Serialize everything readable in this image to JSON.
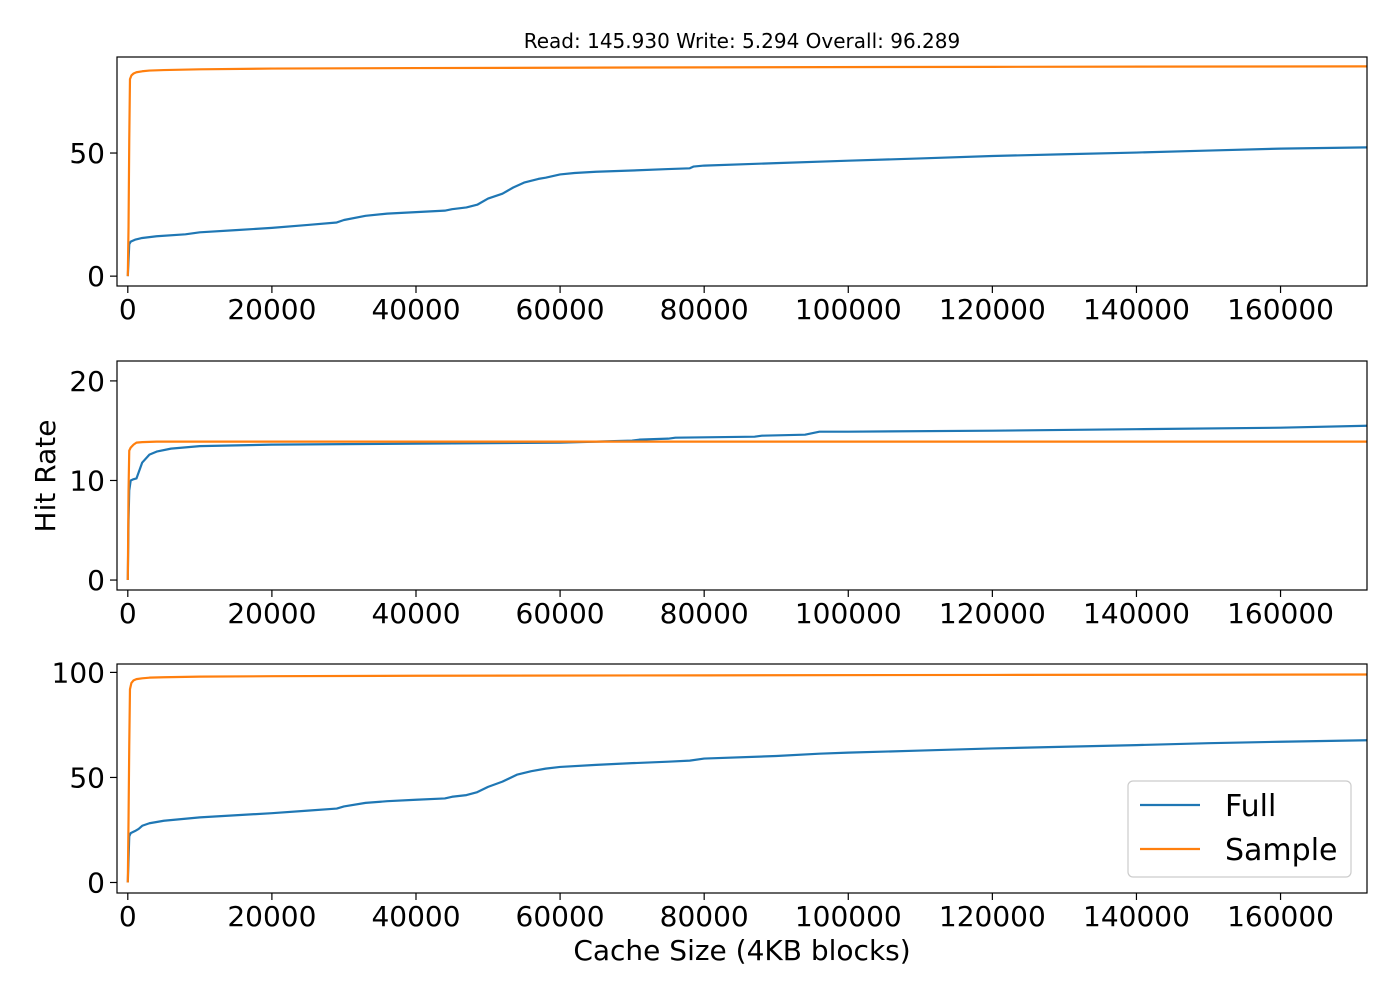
{
  "figure": {
    "title": "Read: 145.930 Write: 5.294 Overall: 96.289",
    "xlabel": "Cache Size (4KB blocks)",
    "ylabel": "Hit Rate"
  },
  "legend": {
    "placement": "lower-right",
    "entries": [
      {
        "name": "Full",
        "color": "#1f77b4"
      },
      {
        "name": "Sample",
        "color": "#ff7f0e"
      }
    ]
  },
  "chart_data": [
    {
      "type": "line",
      "xlim": [
        -1500,
        172000
      ],
      "ylim": [
        -4,
        89
      ],
      "xticks": [
        0,
        20000,
        40000,
        60000,
        80000,
        100000,
        120000,
        140000,
        160000
      ],
      "yticks": [
        0,
        50
      ],
      "grid": false,
      "series": [
        {
          "name": "Full",
          "color": "#1f77b4",
          "x": [
            0,
            200,
            400,
            1000,
            2000,
            4000,
            8000,
            10000,
            15000,
            20000,
            25000,
            29000,
            30000,
            33000,
            36000,
            40000,
            44000,
            45000,
            47000,
            48500,
            50000,
            52000,
            53500,
            55000,
            57000,
            58000,
            60000,
            62000,
            65000,
            70000,
            75000,
            78000,
            78500,
            80000,
            90000,
            100000,
            110000,
            120000,
            130000,
            140000,
            150000,
            160000,
            172000
          ],
          "y": [
            0,
            13,
            14,
            14.8,
            15.5,
            16.2,
            17,
            17.8,
            18.7,
            19.6,
            20.8,
            21.8,
            22.8,
            24.5,
            25.4,
            26,
            26.6,
            27.2,
            27.9,
            29,
            31.5,
            33.5,
            36,
            38,
            39.5,
            40,
            41.3,
            41.9,
            42.4,
            42.9,
            43.5,
            43.8,
            44.5,
            44.9,
            45.9,
            46.9,
            47.8,
            48.8,
            49.5,
            50.2,
            51,
            51.8,
            52.3
          ]
        },
        {
          "name": "Sample",
          "color": "#ff7f0e",
          "x": [
            0,
            100,
            200,
            300,
            500,
            800,
            1200,
            2000,
            3000,
            5000,
            10000,
            20000,
            40000,
            80000,
            120000,
            172000
          ],
          "y": [
            0,
            20,
            55,
            80,
            81.5,
            82.3,
            82.8,
            83.2,
            83.5,
            83.7,
            84,
            84.3,
            84.5,
            84.8,
            85,
            85.2
          ]
        }
      ]
    },
    {
      "type": "line",
      "xlim": [
        -1500,
        172000
      ],
      "ylim": [
        -1,
        22
      ],
      "xticks": [
        0,
        20000,
        40000,
        60000,
        80000,
        100000,
        120000,
        140000,
        160000
      ],
      "yticks": [
        0,
        10,
        20
      ],
      "grid": false,
      "series": [
        {
          "name": "Full",
          "color": "#1f77b4",
          "x": [
            0,
            100,
            200,
            400,
            700,
            1200,
            1500,
            2000,
            3000,
            4000,
            6000,
            10000,
            20000,
            40000,
            60000,
            70000,
            71000,
            75000,
            76000,
            87000,
            88000,
            94000,
            96000,
            100000,
            120000,
            140000,
            160000,
            172000
          ],
          "y": [
            0,
            6,
            9,
            10,
            10.1,
            10.2,
            10.8,
            11.8,
            12.6,
            12.9,
            13.2,
            13.45,
            13.6,
            13.7,
            13.8,
            14,
            14.1,
            14.2,
            14.3,
            14.4,
            14.5,
            14.6,
            14.9,
            14.9,
            15,
            15.15,
            15.3,
            15.5
          ]
        },
        {
          "name": "Sample",
          "color": "#ff7f0e",
          "x": [
            0,
            100,
            200,
            400,
            800,
            1200,
            2000,
            4000,
            172000
          ],
          "y": [
            0,
            9,
            13,
            13.3,
            13.6,
            13.8,
            13.85,
            13.9,
            13.9
          ]
        }
      ]
    },
    {
      "type": "line",
      "xlim": [
        -1500,
        172000
      ],
      "ylim": [
        -5,
        104
      ],
      "xticks": [
        0,
        20000,
        40000,
        60000,
        80000,
        100000,
        120000,
        140000,
        160000
      ],
      "yticks": [
        0,
        50,
        100
      ],
      "grid": false,
      "series": [
        {
          "name": "Full",
          "color": "#1f77b4",
          "x": [
            0,
            200,
            400,
            1000,
            1500,
            2000,
            3000,
            5000,
            10000,
            20000,
            25000,
            29000,
            30000,
            33000,
            36000,
            40000,
            44000,
            45000,
            47000,
            48500,
            50000,
            52000,
            54000,
            56000,
            58000,
            60000,
            65000,
            70000,
            75000,
            78000,
            80000,
            90000,
            96000,
            100000,
            110000,
            120000,
            130000,
            140000,
            150000,
            160000,
            172000
          ],
          "y": [
            0,
            22,
            23.5,
            24.5,
            25.5,
            27,
            28.2,
            29.4,
            31,
            33,
            34.2,
            35.2,
            36.2,
            37.9,
            38.7,
            39.4,
            40,
            40.8,
            41.6,
            43,
            45.5,
            48,
            51.3,
            53,
            54.2,
            55,
            56,
            56.8,
            57.5,
            58,
            59,
            60.2,
            61.3,
            61.8,
            62.8,
            63.8,
            64.6,
            65.4,
            66.3,
            67,
            67.7
          ]
        },
        {
          "name": "Sample",
          "color": "#ff7f0e",
          "x": [
            0,
            100,
            200,
            300,
            500,
            800,
            1200,
            2000,
            3000,
            5000,
            10000,
            20000,
            40000,
            80000,
            120000,
            172000
          ],
          "y": [
            0,
            30,
            65,
            92,
            95,
            96.2,
            96.8,
            97.2,
            97.5,
            97.7,
            98,
            98.2,
            98.4,
            98.6,
            98.8,
            99
          ]
        }
      ]
    }
  ]
}
